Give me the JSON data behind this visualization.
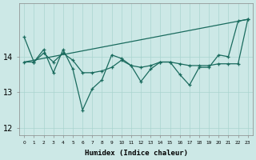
{
  "xlabel": "Humidex (Indice chaleur)",
  "background_color": "#cce8e6",
  "line_color": "#1a6b5e",
  "grid_color": "#aad4d0",
  "series1_volatile": {
    "x": [
      0,
      1,
      2,
      3,
      4,
      5,
      6,
      7,
      8,
      9,
      10,
      11,
      12,
      13,
      14,
      15,
      16,
      17,
      18,
      19,
      20,
      21,
      22,
      23
    ],
    "y": [
      14.55,
      13.85,
      14.2,
      13.55,
      14.2,
      13.65,
      12.5,
      13.1,
      13.35,
      14.05,
      13.95,
      13.75,
      13.3,
      13.65,
      13.85,
      13.85,
      13.5,
      13.2,
      13.7,
      13.7,
      14.05,
      14.0,
      15.0,
      15.05
    ]
  },
  "series2_smooth": {
    "x": [
      0,
      1,
      2,
      3,
      4,
      5,
      6,
      7,
      8,
      9,
      10,
      11,
      12,
      13,
      14,
      15,
      16,
      17,
      18,
      19,
      20,
      21,
      22,
      23
    ],
    "y": [
      13.85,
      13.85,
      14.1,
      13.85,
      14.1,
      13.9,
      13.55,
      13.55,
      13.6,
      13.7,
      13.9,
      13.75,
      13.7,
      13.75,
      13.85,
      13.85,
      13.8,
      13.75,
      13.75,
      13.75,
      13.8,
      13.8,
      13.8,
      15.05
    ]
  },
  "series3_trend": {
    "x": [
      0,
      23
    ],
    "y": [
      13.85,
      15.05
    ]
  },
  "yticks": [
    12,
    13,
    14
  ],
  "ylim": [
    11.8,
    15.5
  ],
  "xlim": [
    -0.5,
    23.5
  ],
  "xtick_labels": [
    "0",
    "1",
    "2",
    "3",
    "4",
    "5",
    "6",
    "7",
    "8",
    "9",
    "10",
    "11",
    "12",
    "13",
    "14",
    "15",
    "16",
    "17",
    "18",
    "19",
    "20",
    "21",
    "22",
    "23"
  ]
}
